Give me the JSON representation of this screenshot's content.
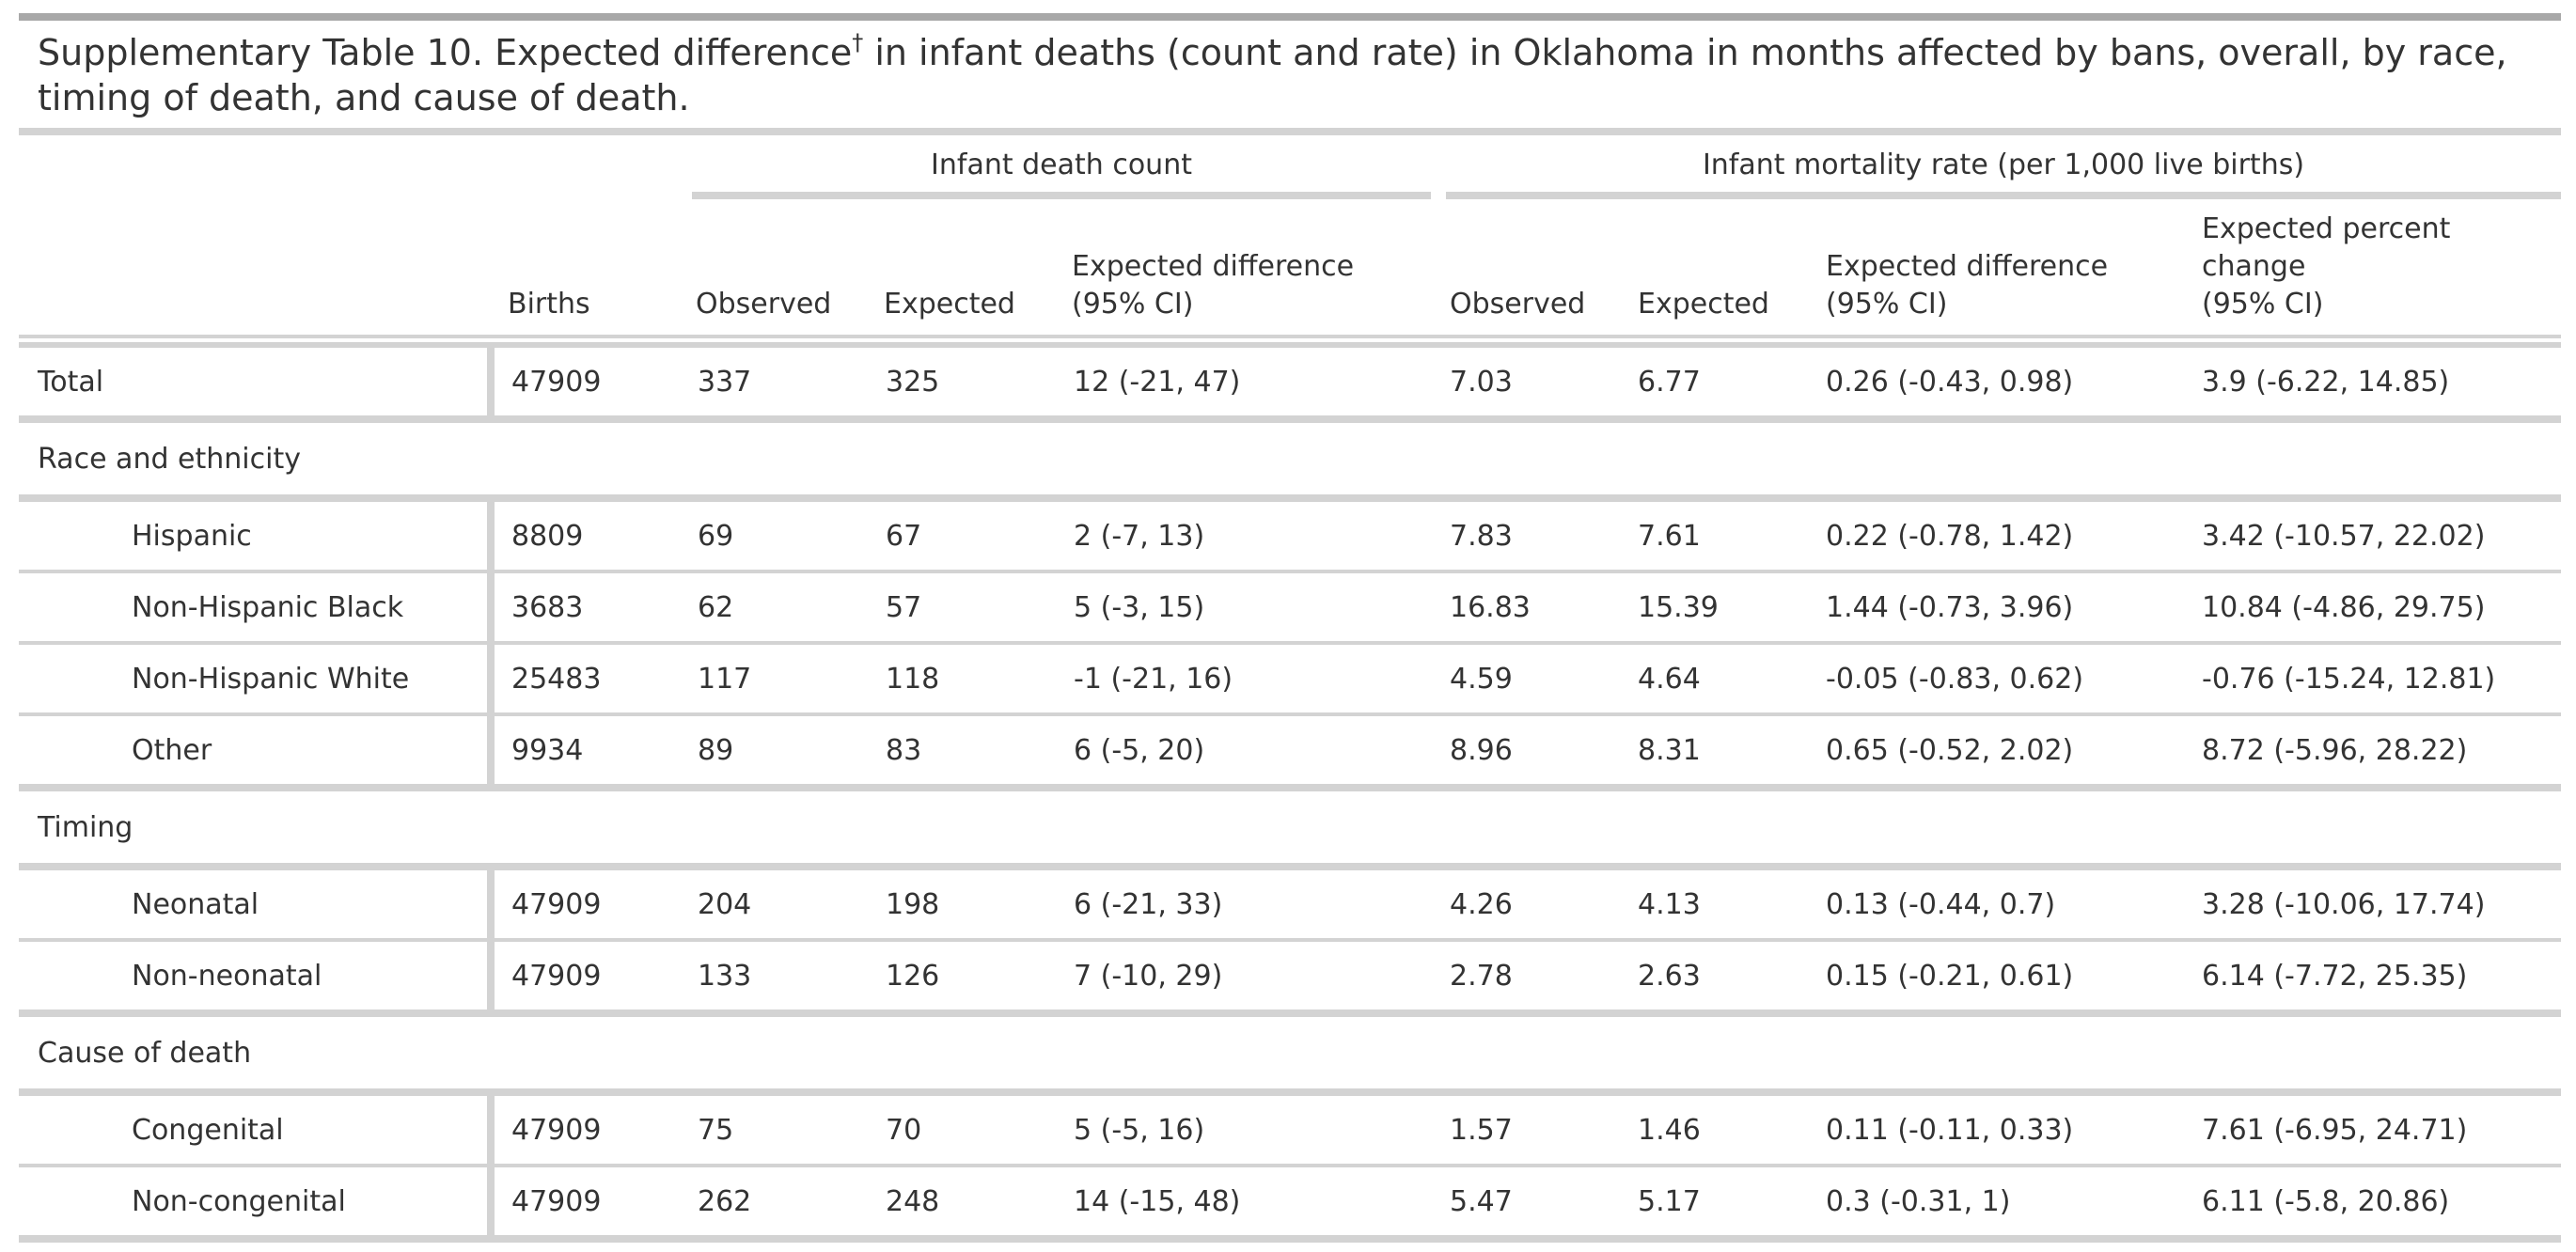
{
  "title": {
    "prefix": "Supplementary Table 10. Expected difference",
    "dagger": "†",
    "suffix_line1": " in infant deaths (count and rate) in Oklahoma in months affected by bans, overall, by race,",
    "line2": "timing of death, and cause of death."
  },
  "spanners": {
    "count": "Infant death count",
    "rate": "Infant mortality rate (per 1,000 live births)"
  },
  "columns": {
    "births": "Births",
    "count_observed": "Observed",
    "count_expected": "Expected",
    "count_diff_l1": "Expected difference",
    "count_diff_l2": "(95% CI)",
    "rate_observed": "Observed",
    "rate_expected": "Expected",
    "rate_diff_l1": "Expected difference",
    "rate_diff_l2": "(95% CI)",
    "pct_l1": "Expected percent",
    "pct_l2": "change",
    "pct_l3": "(95% CI)"
  },
  "rows": [
    {
      "label": "Total",
      "births": "47909",
      "obs": "337",
      "exp": "325",
      "diff": "12 (-21, 47)",
      "robs": "7.03",
      "rexp": "6.77",
      "rdiff": "0.26 (-0.43, 0.98)",
      "pct": "3.9 (-6.22, 14.85)"
    },
    {
      "group": "Race and ethnicity"
    },
    {
      "label": "Hispanic",
      "births": "8809",
      "obs": "69",
      "exp": "67",
      "diff": "2 (-7, 13)",
      "robs": "7.83",
      "rexp": "7.61",
      "rdiff": "0.22 (-0.78, 1.42)",
      "pct": "3.42 (-10.57, 22.02)"
    },
    {
      "label": "Non-Hispanic Black",
      "births": "3683",
      "obs": "62",
      "exp": "57",
      "diff": "5 (-3, 15)",
      "robs": "16.83",
      "rexp": "15.39",
      "rdiff": "1.44 (-0.73, 3.96)",
      "pct": "10.84 (-4.86, 29.75)"
    },
    {
      "label": "Non-Hispanic White",
      "births": "25483",
      "obs": "117",
      "exp": "118",
      "diff": "-1 (-21, 16)",
      "robs": "4.59",
      "rexp": "4.64",
      "rdiff": "-0.05 (-0.83, 0.62)",
      "pct": "-0.76 (-15.24, 12.81)"
    },
    {
      "label": "Other",
      "births": "9934",
      "obs": "89",
      "exp": "83",
      "diff": "6 (-5, 20)",
      "robs": "8.96",
      "rexp": "8.31",
      "rdiff": "0.65 (-0.52, 2.02)",
      "pct": "8.72 (-5.96, 28.22)"
    },
    {
      "group": "Timing"
    },
    {
      "label": "Neonatal",
      "births": "47909",
      "obs": "204",
      "exp": "198",
      "diff": "6 (-21, 33)",
      "robs": "4.26",
      "rexp": "4.13",
      "rdiff": "0.13 (-0.44, 0.7)",
      "pct": "3.28 (-10.06, 17.74)"
    },
    {
      "label": "Non-neonatal",
      "births": "47909",
      "obs": "133",
      "exp": "126",
      "diff": "7 (-10, 29)",
      "robs": "2.78",
      "rexp": "2.63",
      "rdiff": "0.15 (-0.21, 0.61)",
      "pct": "6.14 (-7.72, 25.35)"
    },
    {
      "group": "Cause of death"
    },
    {
      "label": "Congenital",
      "births": "47909",
      "obs": "75",
      "exp": "70",
      "diff": "5 (-5, 16)",
      "robs": "1.57",
      "rexp": "1.46",
      "rdiff": "0.11 (-0.11, 0.33)",
      "pct": "7.61 (-6.95, 24.71)"
    },
    {
      "label": "Non-congenital",
      "births": "47909",
      "obs": "262",
      "exp": "248",
      "diff": "14 (-15, 48)",
      "robs": "5.47",
      "rexp": "5.17",
      "rdiff": "0.3 (-0.31, 1)",
      "pct": "6.11 (-5.8, 20.86)"
    }
  ]
}
